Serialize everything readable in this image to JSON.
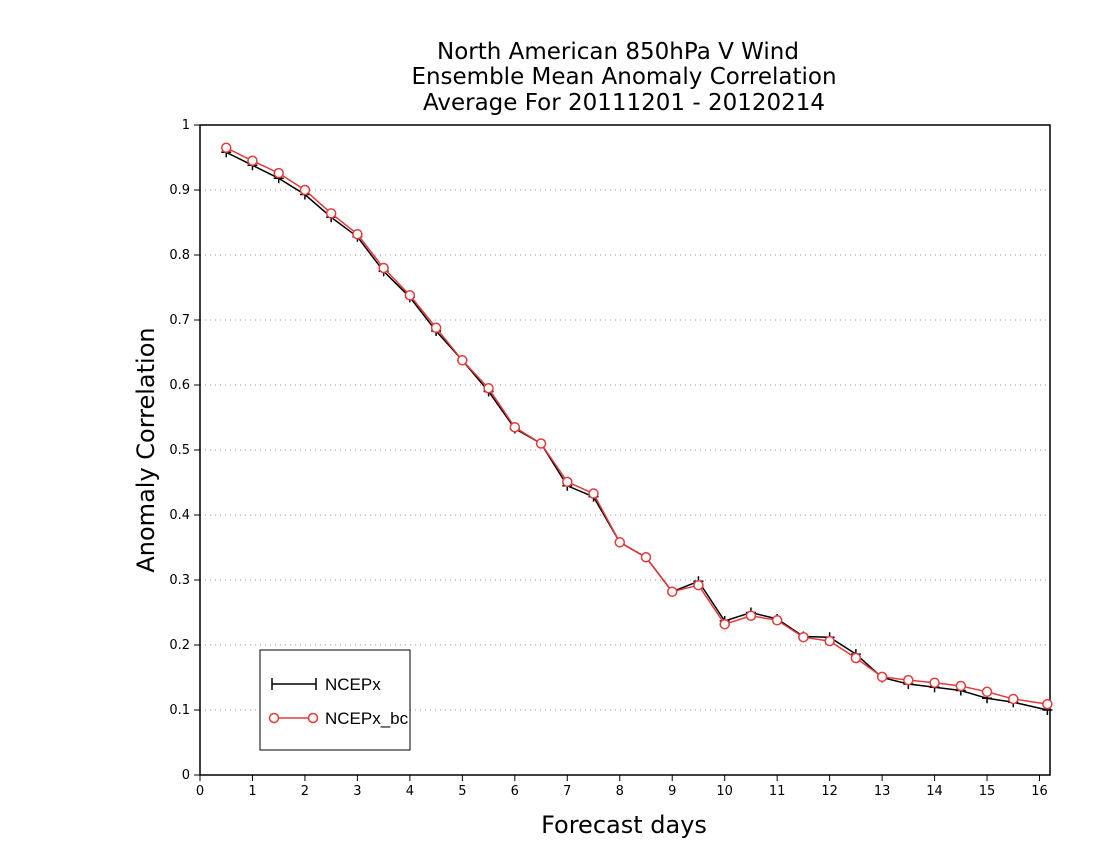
{
  "chart_data": {
    "type": "line",
    "title": [
      "North American 850hPa V Wind",
      "Ensemble Mean Anomaly Correlation",
      "Average For 20111201 - 20120214"
    ],
    "xlabel": "Forecast days",
    "ylabel": "Anomaly Correlation",
    "xlim": [
      0,
      16.2
    ],
    "ylim": [
      0,
      1
    ],
    "xticks": [
      "0",
      "1",
      "2",
      "3",
      "4",
      "5",
      "6",
      "7",
      "8",
      "9",
      "10",
      "11",
      "12",
      "13",
      "14",
      "15",
      "16"
    ],
    "yticks": [
      "0",
      "0.1",
      "0.2",
      "0.3",
      "0.4",
      "0.5",
      "0.6",
      "0.7",
      "0.8",
      "0.9",
      "1"
    ],
    "grid": "horizontal dotted",
    "legend_position": "bottom-left",
    "x": [
      0.5,
      1,
      1.5,
      2,
      2.5,
      3,
      3.5,
      4,
      4.5,
      5,
      5.5,
      6,
      6.5,
      7,
      7.5,
      8,
      8.5,
      9,
      9.5,
      10,
      10.5,
      11,
      11.5,
      12,
      12.5,
      13,
      13.5,
      14,
      14.5,
      15,
      15.5,
      16.15
    ],
    "series": [
      {
        "name": "NCEPx",
        "color": "#000000",
        "marker": "plus",
        "values": [
          0.958,
          0.938,
          0.918,
          0.893,
          0.858,
          0.828,
          0.775,
          0.735,
          0.683,
          0.638,
          0.59,
          0.533,
          0.51,
          0.445,
          0.428,
          0.358,
          0.335,
          0.282,
          0.298,
          0.237,
          0.25,
          0.24,
          0.213,
          0.212,
          0.186,
          0.15,
          0.14,
          0.135,
          0.13,
          0.118,
          0.112,
          0.1
        ]
      },
      {
        "name": "NCEPx_bc",
        "color": "#e33b3b",
        "marker": "circle",
        "values": [
          0.965,
          0.945,
          0.926,
          0.9,
          0.864,
          0.832,
          0.78,
          0.738,
          0.688,
          0.638,
          0.595,
          0.535,
          0.51,
          0.451,
          0.433,
          0.358,
          0.335,
          0.282,
          0.292,
          0.232,
          0.245,
          0.238,
          0.212,
          0.206,
          0.18,
          0.151,
          0.146,
          0.142,
          0.137,
          0.128,
          0.117,
          0.109
        ]
      }
    ]
  }
}
